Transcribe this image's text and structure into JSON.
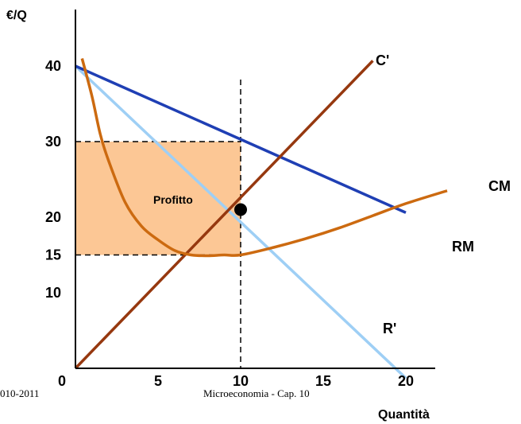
{
  "chart_data": {
    "type": "line",
    "ylabel": "€/Q",
    "xlabel": "Quantità",
    "xlim": [
      0,
      20
    ],
    "ylim": [
      0,
      45
    ],
    "x_ticks": [
      "0",
      "5",
      "10",
      "15",
      "20"
    ],
    "y_ticks": [
      "10",
      "15",
      "20",
      "30",
      "40"
    ],
    "series": [
      {
        "name": "RM",
        "color": "#1f3fb4",
        "points": [
          [
            0,
            40
          ],
          [
            20,
            20.6
          ]
        ]
      },
      {
        "name": "R'",
        "color": "#9ecff5",
        "points": [
          [
            0,
            40
          ],
          [
            20,
            -1.3
          ]
        ]
      },
      {
        "name": "C'",
        "color": "#96380f",
        "points": [
          [
            0,
            0
          ],
          [
            18,
            40.7
          ]
        ]
      },
      {
        "name": "CM",
        "color": "#cc6a10",
        "points": [
          [
            0.4,
            41
          ],
          [
            1,
            36
          ],
          [
            1.5,
            31
          ],
          [
            2,
            27.5
          ],
          [
            3,
            22
          ],
          [
            4,
            18.8
          ],
          [
            5,
            17
          ],
          [
            6,
            15.6
          ],
          [
            7,
            15
          ],
          [
            8,
            14.9
          ],
          [
            9,
            15
          ],
          [
            10,
            15
          ],
          [
            12,
            16
          ],
          [
            14,
            17.2
          ],
          [
            16,
            18.6
          ],
          [
            18,
            20.2
          ],
          [
            20,
            21.8
          ],
          [
            22.5,
            23.5
          ]
        ]
      }
    ],
    "annotations": {
      "profit_label": "Profitto",
      "profit_box": {
        "x": [
          0,
          10
        ],
        "y": [
          15,
          30
        ]
      },
      "optimum_point": {
        "x": 10,
        "y": 21
      },
      "guide_x": 10
    }
  },
  "footer": {
    "left": "010-2011",
    "center": "Microeconomia - Cap. 10"
  },
  "colors": {
    "profit_fill": "#fcc795",
    "axis": "#000000"
  }
}
